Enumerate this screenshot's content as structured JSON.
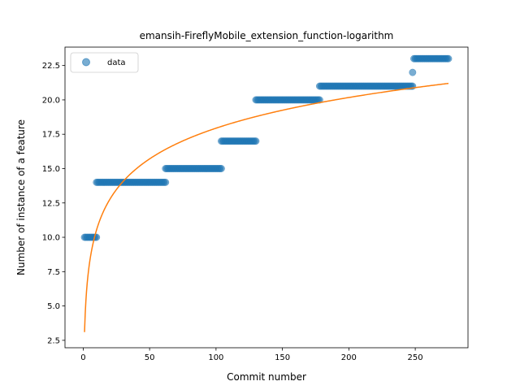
{
  "chart_data": {
    "type": "scatter",
    "title": "emansih-FireflyMobile_extension_function-logarithm",
    "xlabel": "Commit number",
    "ylabel": "Number of instance of a feature",
    "xlim": [
      -13.7,
      289.7
    ],
    "ylim": [
      1.96,
      23.84
    ],
    "xticks": [
      0,
      50,
      100,
      150,
      200,
      250
    ],
    "xtick_labels": [
      "0",
      "50",
      "100",
      "150",
      "200",
      "250"
    ],
    "yticks": [
      2.5,
      5.0,
      7.5,
      10.0,
      12.5,
      15.0,
      17.5,
      20.0,
      22.5
    ],
    "ytick_labels": [
      "2.5",
      "5.0",
      "7.5",
      "10.0",
      "12.5",
      "15.0",
      "17.5",
      "20.0",
      "22.5"
    ],
    "grid": false,
    "legend": {
      "position": "top-left",
      "entries": [
        "data"
      ]
    },
    "colors": {
      "points": "#1f77b4",
      "fit": "#ff7f0e"
    },
    "series": [
      {
        "name": "data",
        "kind": "points",
        "segments": [
          {
            "x_start": 1,
            "x_end": 10,
            "y": 10
          },
          {
            "x_start": 10,
            "x_end": 62,
            "y": 14
          },
          {
            "x_start": 62,
            "x_end": 104,
            "y": 15
          },
          {
            "x_start": 104,
            "x_end": 130,
            "y": 17
          },
          {
            "x_start": 130,
            "x_end": 178,
            "y": 20
          },
          {
            "x_start": 178,
            "x_end": 248,
            "y": 21
          },
          {
            "x_start": 248,
            "x_end": 248,
            "y": 22
          },
          {
            "x_start": 249,
            "x_end": 275,
            "y": 23
          }
        ]
      },
      {
        "kind": "fit",
        "function": "logarithm",
        "x_range": [
          1,
          275
        ],
        "y_at_start": 3.1,
        "y_at_end": 21.2
      }
    ]
  }
}
